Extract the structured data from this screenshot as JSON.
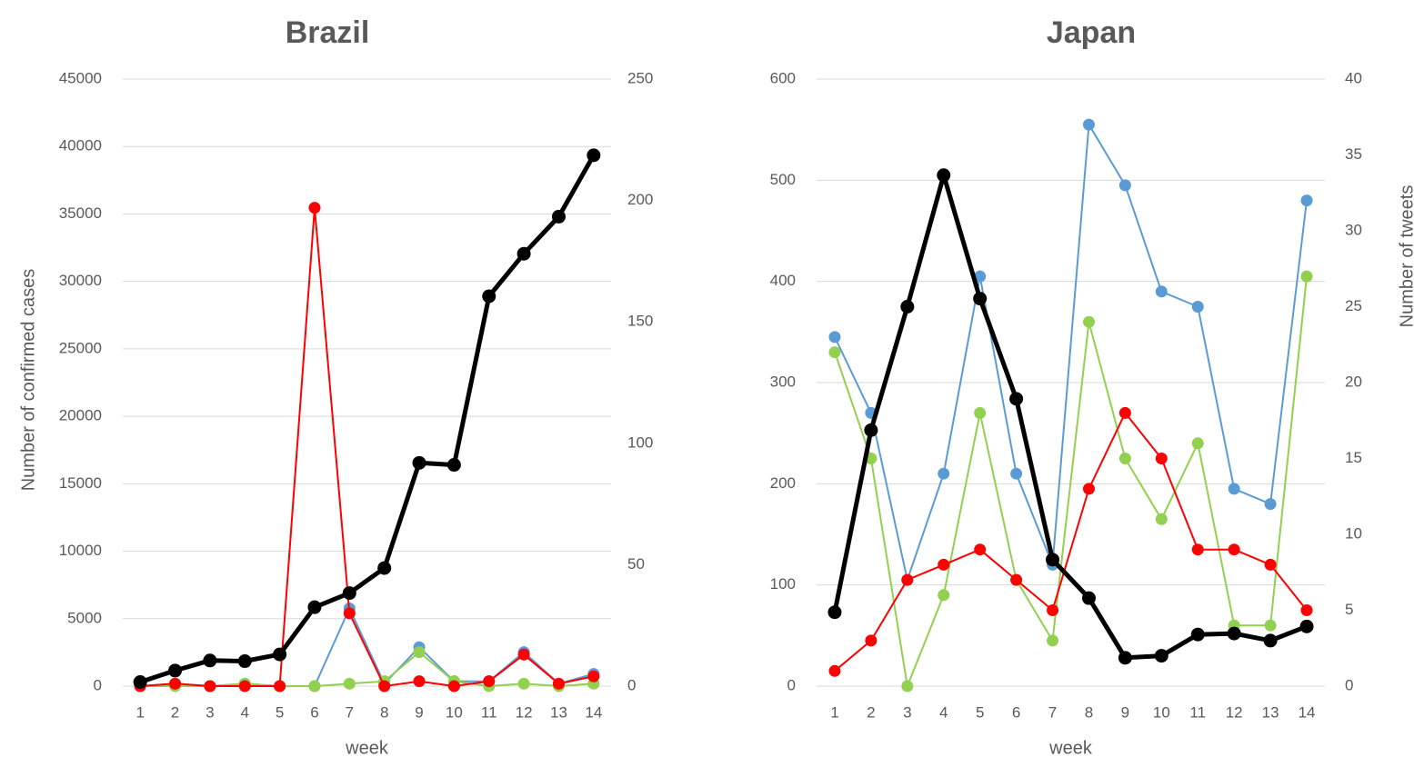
{
  "chart_data": [
    {
      "type": "line",
      "title": "Brazil",
      "xlabel": "week",
      "ylabel": "Number of confirmed cases",
      "y2label": "",
      "categories": [
        "1",
        "2",
        "3",
        "4",
        "5",
        "6",
        "7",
        "8",
        "9",
        "10",
        "11",
        "12",
        "13",
        "14"
      ],
      "ylim": [
        0,
        45000
      ],
      "yticks": [
        0,
        5000,
        10000,
        15000,
        20000,
        25000,
        30000,
        35000,
        40000,
        45000
      ],
      "y2lim": [
        0,
        250
      ],
      "y2ticks": [
        0,
        50,
        100,
        150,
        200,
        250
      ],
      "grid": true,
      "series": [
        {
          "axis": "y",
          "color": "#000000",
          "width": 5,
          "values": [
            300,
            1150,
            1900,
            1850,
            2350,
            5850,
            6900,
            8750,
            16550,
            16400,
            28900,
            32050,
            34800,
            39350
          ]
        },
        {
          "axis": "y2",
          "color": "#5b9bd5",
          "width": 2,
          "values": [
            0,
            1,
            0,
            1,
            0,
            0,
            32,
            1,
            16,
            2,
            2,
            14,
            1,
            5
          ]
        },
        {
          "axis": "y2",
          "color": "#92d050",
          "width": 2,
          "values": [
            0,
            0,
            0,
            1,
            0,
            0,
            1,
            2,
            14,
            2,
            0,
            1,
            0,
            1
          ]
        },
        {
          "axis": "y2",
          "color": "#ff0000",
          "width": 2,
          "values": [
            0,
            1,
            0,
            0,
            0,
            197,
            30,
            0,
            2,
            0,
            2,
            13,
            1,
            4
          ]
        }
      ]
    },
    {
      "type": "line",
      "title": "Japan",
      "xlabel": "week",
      "ylabel": "",
      "y2label": "Number of tweets",
      "categories": [
        "1",
        "2",
        "3",
        "4",
        "5",
        "6",
        "7",
        "8",
        "9",
        "10",
        "11",
        "12",
        "13",
        "14"
      ],
      "ylim": [
        0,
        600
      ],
      "yticks": [
        0,
        100,
        200,
        300,
        400,
        500,
        600
      ],
      "y2lim": [
        0,
        40
      ],
      "y2ticks": [
        0,
        5,
        10,
        15,
        20,
        25,
        30,
        35,
        40
      ],
      "grid": true,
      "series": [
        {
          "axis": "y",
          "color": "#000000",
          "width": 5,
          "values": [
            73,
            253,
            375,
            505,
            383,
            284,
            125,
            87,
            28,
            30,
            51,
            52,
            45,
            59
          ]
        },
        {
          "axis": "y2",
          "color": "#5b9bd5",
          "width": 2,
          "values": [
            23,
            18,
            7,
            14,
            27,
            14,
            8,
            37,
            33,
            26,
            25,
            13,
            12,
            32
          ]
        },
        {
          "axis": "y2",
          "color": "#92d050",
          "width": 2,
          "values": [
            22,
            15,
            0,
            6,
            18,
            7,
            3,
            24,
            15,
            11,
            16,
            4,
            4,
            27
          ]
        },
        {
          "axis": "y2",
          "color": "#ff0000",
          "width": 2,
          "values": [
            1,
            3,
            7,
            8,
            9,
            7,
            5,
            13,
            18,
            15,
            9,
            9,
            8,
            5
          ]
        }
      ]
    }
  ]
}
